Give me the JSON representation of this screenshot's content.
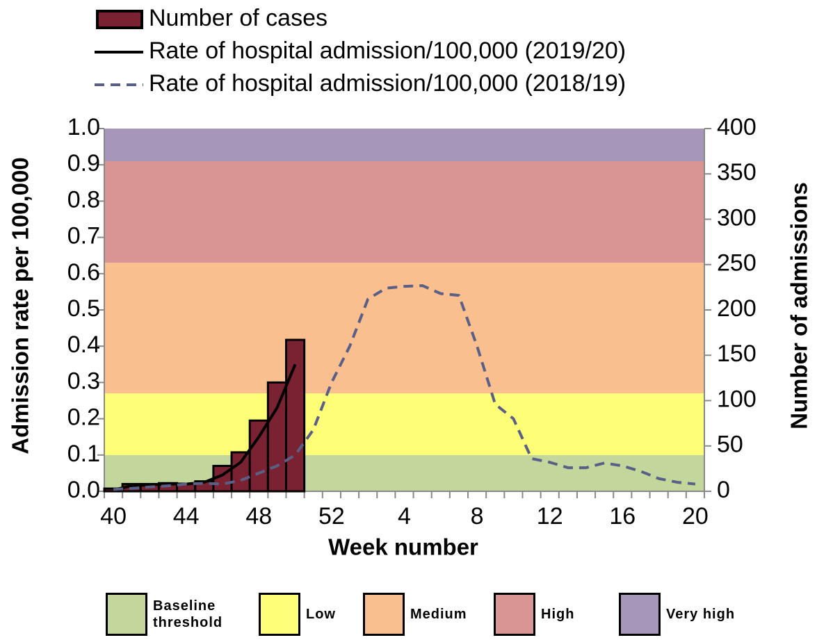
{
  "chart_data": {
    "type": "bar",
    "x_label": "Week number",
    "y_label": "Admission rate per 100,000",
    "y2_label": "Number of admissions",
    "categories": [
      40,
      null,
      null,
      null,
      44,
      null,
      null,
      null,
      48,
      null,
      null,
      null,
      52,
      null,
      null,
      null,
      4,
      null,
      null,
      null,
      8,
      null,
      null,
      null,
      12,
      null,
      null,
      null,
      16,
      null,
      null,
      null,
      20
    ],
    "ylim": [
      0,
      1
    ],
    "yticks": [
      {
        "value": 0,
        "label": "0.0"
      },
      0.1,
      0.2,
      0.3,
      0.4,
      0.5,
      0.6,
      0.7,
      0.8,
      0.9,
      {
        "value": 1,
        "label": "1.0"
      }
    ],
    "y2lim": [
      0,
      400
    ],
    "y2ticks": [
      0,
      50,
      100,
      150,
      200,
      250,
      300,
      350,
      400
    ],
    "thresholds": [
      {
        "name": "Baseline threshold",
        "from": 0,
        "to": 0.1,
        "color": "#c3d69b"
      },
      {
        "name": "Low",
        "from": 0.1,
        "to": 0.27,
        "color": "#ffff77"
      },
      {
        "name": "Medium",
        "from": 0.27,
        "to": 0.63,
        "color": "#f9bf8f"
      },
      {
        "name": "High",
        "from": 0.63,
        "to": 0.91,
        "color": "#d99594"
      },
      {
        "name": "Very high",
        "from": 0.91,
        "to": 1,
        "color": "#a696b9"
      }
    ],
    "series": [
      {
        "name": "Number of cases",
        "type": "bar",
        "axis": "y2",
        "color": "#7b2232",
        "values": [
          3,
          8,
          8,
          9,
          8,
          11,
          28,
          43,
          78,
          120,
          167,
          null,
          null,
          null,
          null,
          null,
          null,
          null,
          null,
          null,
          null,
          null,
          null,
          null,
          null,
          null,
          null,
          null,
          null,
          null,
          null,
          null,
          null
        ]
      },
      {
        "name": "Rate of hospital admission/100,000 (2019/20)",
        "type": "line",
        "color": "#000000",
        "dash": false,
        "values": [
          0.004,
          0.015,
          0.018,
          0.02,
          0.02,
          0.025,
          0.045,
          0.08,
          0.15,
          0.23,
          0.35,
          null,
          null,
          null,
          null,
          null,
          null,
          null,
          null,
          null,
          null,
          null,
          null,
          null,
          null,
          null,
          null,
          null,
          null,
          null,
          null,
          null,
          null
        ]
      },
      {
        "name": "Rate of hospital admission/100,000 (2018/19)",
        "type": "line",
        "color": "#5a5f86",
        "dash": true,
        "values": [
          0.005,
          0.008,
          0.012,
          0.015,
          0.02,
          0.022,
          0.02,
          0.03,
          0.05,
          0.07,
          0.1,
          0.17,
          0.3,
          0.4,
          0.53,
          0.56,
          0.565,
          0.567,
          0.545,
          0.54,
          0.4,
          0.24,
          0.2,
          0.09,
          0.08,
          0.065,
          0.065,
          0.078,
          0.07,
          0.055,
          0.035,
          0.025,
          0.02
        ]
      }
    ]
  }
}
